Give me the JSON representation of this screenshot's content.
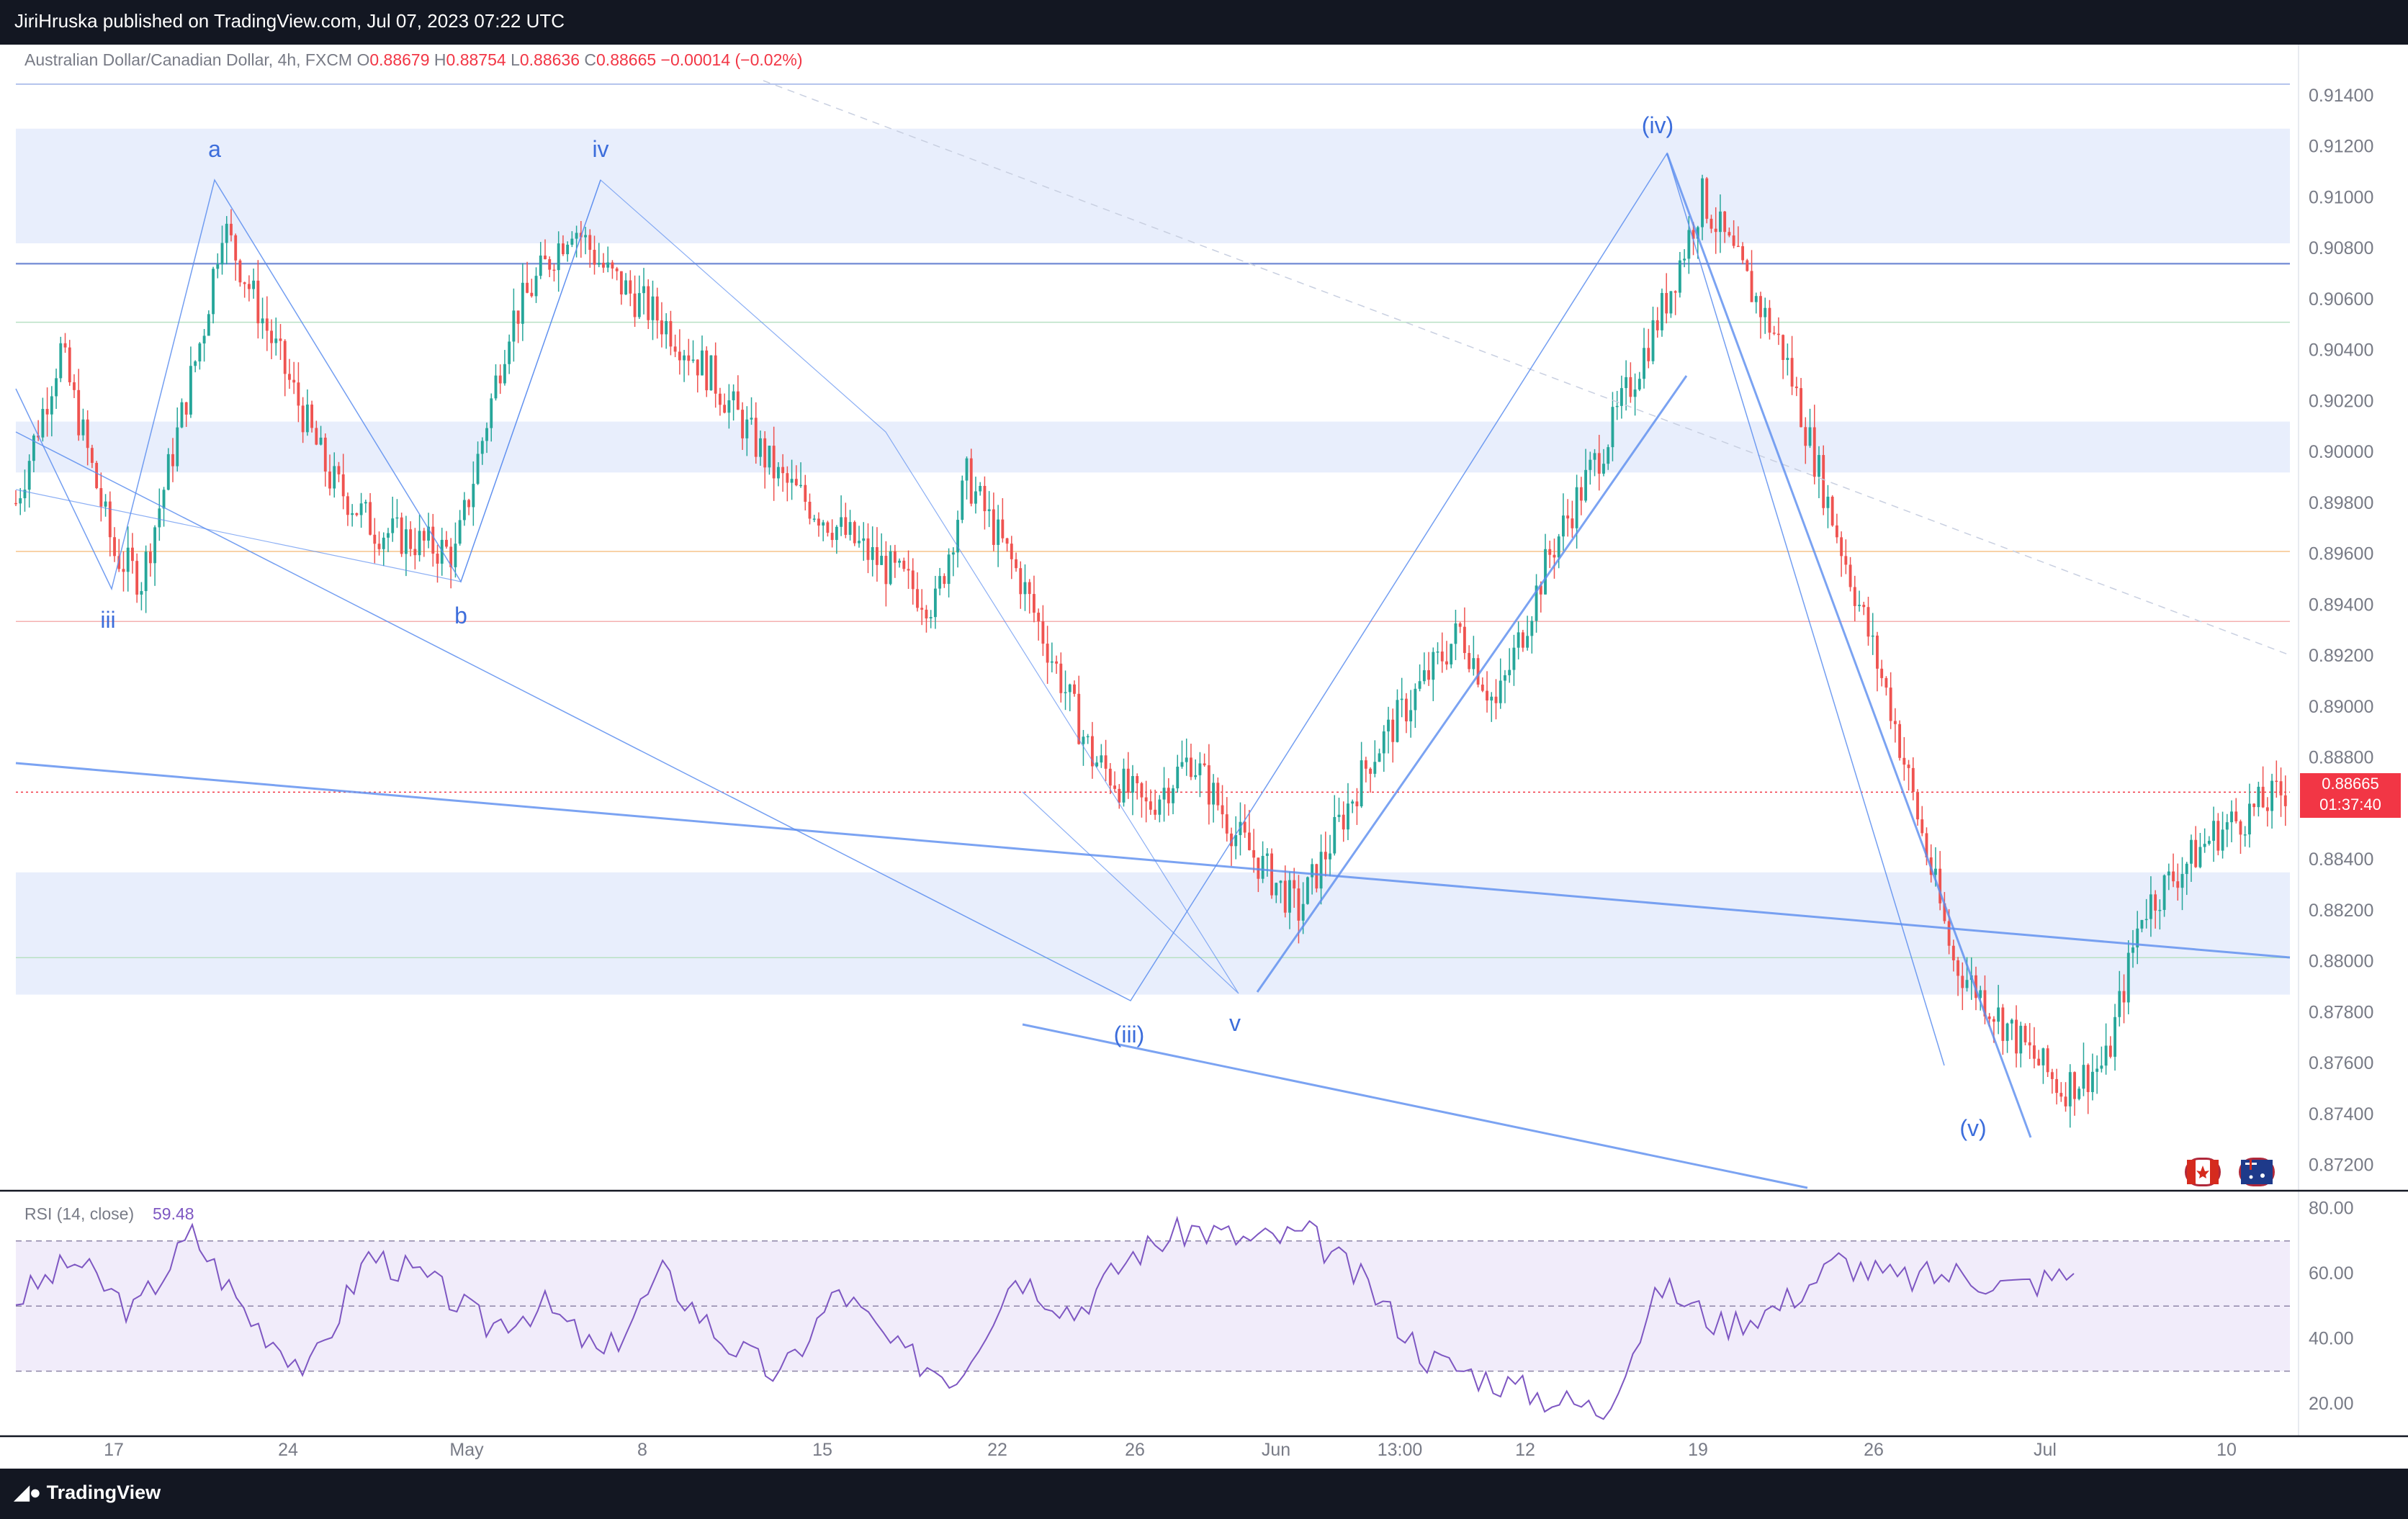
{
  "header": {
    "published": "JiriHruska published on TradingView.com, Jul 07, 2023 07:22 UTC"
  },
  "legend": {
    "symbol": "Australian Dollar/Canadian Dollar, 4h, FXCM",
    "o_label": "O",
    "o": "0.88679",
    "h_label": "H",
    "h": "0.88754",
    "l_label": "L",
    "l": "0.88636",
    "c_label": "C",
    "c": "0.88665",
    "change": "−0.00014 (−0.02%)"
  },
  "price_badge": {
    "price": "0.88665",
    "countdown": "01:37:40"
  },
  "rsi": {
    "label": "RSI (14, close)",
    "value": "59.48",
    "ticks": [
      "80.00",
      "60.00",
      "40.00",
      "20.00"
    ]
  },
  "footer": {
    "brand": "TradingView"
  },
  "colors": {
    "up": "#26a69a",
    "down": "#ef5350",
    "wave": "#5b8def",
    "zone": "#e8eefc",
    "rsi": "#7e57c2"
  },
  "icons": [
    "canada-flag-icon",
    "australia-flag-icon",
    "tradingview-logo-icon"
  ],
  "chart_data": {
    "type": "candlestick",
    "title": "Australian Dollar/Canadian Dollar, 4h, FXCM",
    "y_ticks": [
      "0.91400",
      "0.91200",
      "0.91000",
      "0.90800",
      "0.90600",
      "0.90400",
      "0.90200",
      "0.90000",
      "0.89800",
      "0.89600",
      "0.89400",
      "0.89200",
      "0.89000",
      "0.88800",
      "0.88600",
      "0.88400",
      "0.88200",
      "0.88000",
      "0.87800",
      "0.87600",
      "0.87400",
      "0.87200"
    ],
    "ylim": [
      0.871,
      0.916
    ],
    "x_ticks": [
      "17",
      "24",
      "May",
      "8",
      "15",
      "22",
      "26",
      "Jun",
      "13:00",
      "12",
      "19",
      "26",
      "Jul",
      "10"
    ],
    "close_path": [
      {
        "t": 0,
        "p": 0.898
      },
      {
        "t": 10,
        "p": 0.904
      },
      {
        "t": 22,
        "p": 0.896
      },
      {
        "t": 28,
        "p": 0.895
      },
      {
        "t": 42,
        "p": 0.905
      },
      {
        "t": 46,
        "p": 0.909
      },
      {
        "t": 70,
        "p": 0.899
      },
      {
        "t": 80,
        "p": 0.897
      },
      {
        "t": 98,
        "p": 0.896
      },
      {
        "t": 110,
        "p": 0.905
      },
      {
        "t": 124,
        "p": 0.909
      },
      {
        "t": 132,
        "p": 0.907
      },
      {
        "t": 145,
        "p": 0.905
      },
      {
        "t": 155,
        "p": 0.903
      },
      {
        "t": 170,
        "p": 0.899
      },
      {
        "t": 190,
        "p": 0.896
      },
      {
        "t": 205,
        "p": 0.894
      },
      {
        "t": 212,
        "p": 0.899
      },
      {
        "t": 224,
        "p": 0.895
      },
      {
        "t": 240,
        "p": 0.888
      },
      {
        "t": 252,
        "p": 0.886
      },
      {
        "t": 262,
        "p": 0.888
      },
      {
        "t": 272,
        "p": 0.885
      },
      {
        "t": 286,
        "p": 0.882
      },
      {
        "t": 302,
        "p": 0.888
      },
      {
        "t": 322,
        "p": 0.893
      },
      {
        "t": 330,
        "p": 0.89
      },
      {
        "t": 342,
        "p": 0.896
      },
      {
        "t": 356,
        "p": 0.901
      },
      {
        "t": 368,
        "p": 0.906
      },
      {
        "t": 376,
        "p": 0.91
      },
      {
        "t": 382,
        "p": 0.908
      },
      {
        "t": 394,
        "p": 0.904
      },
      {
        "t": 404,
        "p": 0.898
      },
      {
        "t": 418,
        "p": 0.89
      },
      {
        "t": 432,
        "p": 0.88
      },
      {
        "t": 446,
        "p": 0.877
      },
      {
        "t": 456,
        "p": 0.875
      },
      {
        "t": 466,
        "p": 0.876
      },
      {
        "t": 474,
        "p": 0.882
      },
      {
        "t": 490,
        "p": 0.885
      },
      {
        "t": 506,
        "p": 0.8867
      }
    ],
    "last_price": 0.88665,
    "horizontal_levels": [
      0.91445,
      0.9074,
      0.9051,
      0.8961,
      0.89335,
      0.88665,
      0.88015
    ],
    "zones": [
      [
        0.9082,
        0.9127
      ],
      [
        0.8992,
        0.9012
      ],
      [
        0.8787,
        0.8835
      ]
    ],
    "wave_labels": [
      "a",
      "iii",
      "b",
      "iv",
      "(iii)",
      "v",
      "(iv)",
      "(v)"
    ],
    "rsi_path": [
      52,
      64,
      48,
      72,
      46,
      30,
      66,
      58,
      44,
      50,
      34,
      60,
      40,
      28,
      55,
      36,
      28,
      60,
      48,
      66,
      74,
      70,
      72,
      56,
      34,
      28,
      22,
      18,
      56,
      44,
      50,
      64,
      58,
      60,
      56,
      60
    ],
    "rsi_levels": [
      70,
      50,
      30
    ],
    "rsi_ylim": [
      10,
      85
    ]
  }
}
